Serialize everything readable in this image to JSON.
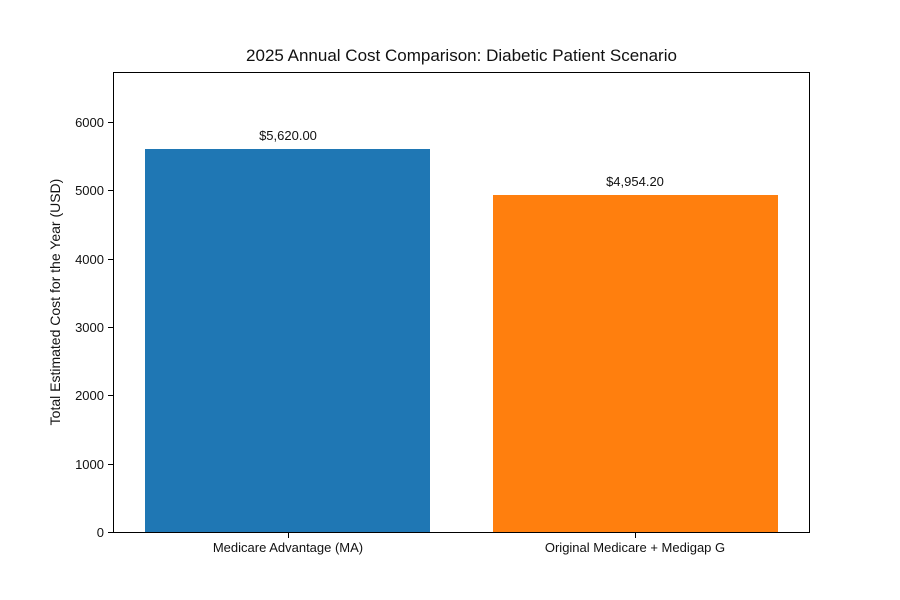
{
  "chart_data": {
    "type": "bar",
    "title": "2025 Annual Cost Comparison: Diabetic Patient Scenario",
    "ylabel": "Total Estimated Cost for the Year (USD)",
    "xlabel": "",
    "categories": [
      "Medicare Advantage (MA)",
      "Original Medicare + Medigap G"
    ],
    "values": [
      5620.0,
      4954.2
    ],
    "value_labels": [
      "$5,620.00",
      "$4,954.20"
    ],
    "bar_colors": [
      "#1f77b4",
      "#ff7f0e"
    ],
    "yticks": [
      0,
      1000,
      2000,
      3000,
      4000,
      5000,
      6000
    ],
    "ylim": [
      0,
      6744
    ],
    "grid": false,
    "legend_visible": false,
    "background_color": "#ffffff",
    "text_color": "#111111",
    "spine_color": "#000000"
  }
}
